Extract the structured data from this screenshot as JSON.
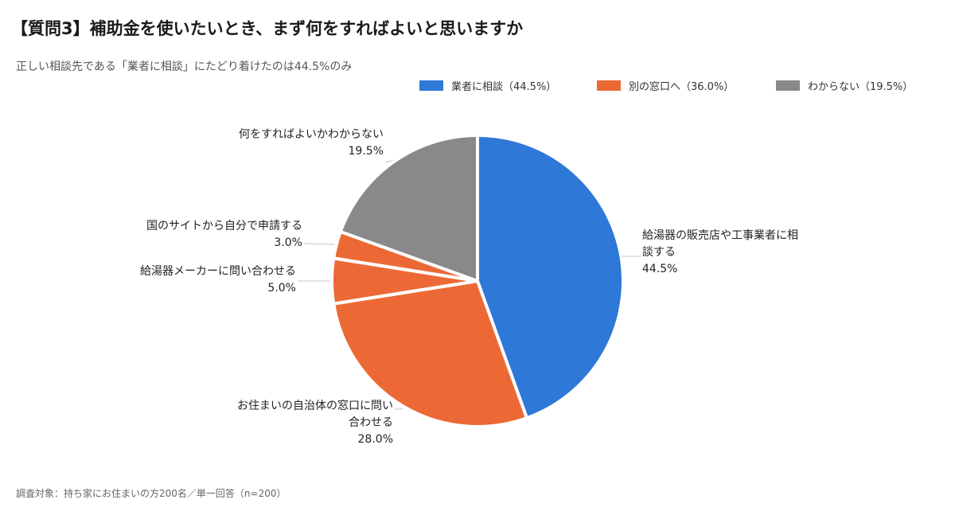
{
  "header": {
    "title": "【質問3】補助金を使いたいとき、まず何をすればよいと思いますか",
    "subtitle": "正しい相談先である「業者に相談」にたどり着けたのは44.5%のみ"
  },
  "footer": {
    "note": "調査対象：持ち家にお住まいの方200名／単一回答（n=200）"
  },
  "chart_data": {
    "type": "pie",
    "title": "【質問3】補助金を使いたいとき、まず何をすればよいと思いますか",
    "subtitle": "正しい相談先である「業者に相談」にたどり着けたのは44.5%のみ",
    "legend_position": "top-right",
    "legend": [
      {
        "label": "業者に相談（44.5%）",
        "color": "#2E78D8"
      },
      {
        "label": "別の窓口へ（36.0%）",
        "color": "#EC6936"
      },
      {
        "label": "わからない（19.5%）",
        "color": "#898989"
      }
    ],
    "slices": [
      {
        "label_lines": [
          "給湯器の販売店や工事業者に相",
          "談する"
        ],
        "value": 44.5,
        "value_label": "44.5%",
        "color": "#2E78D8"
      },
      {
        "label_lines": [
          "お住まいの自治体の窓口に問い",
          "合わせる"
        ],
        "value": 28.0,
        "value_label": "28.0%",
        "color": "#EC6936"
      },
      {
        "label_lines": [
          "給湯器メーカーに問い合わせる"
        ],
        "value": 5.0,
        "value_label": "5.0%",
        "color": "#EC6936"
      },
      {
        "label_lines": [
          "国のサイトから自分で申請する"
        ],
        "value": 3.0,
        "value_label": "3.0%",
        "color": "#EC6936"
      },
      {
        "label_lines": [
          "何をすればよいかわからない"
        ],
        "value": 19.5,
        "value_label": "19.5%",
        "color": "#898989"
      }
    ]
  }
}
